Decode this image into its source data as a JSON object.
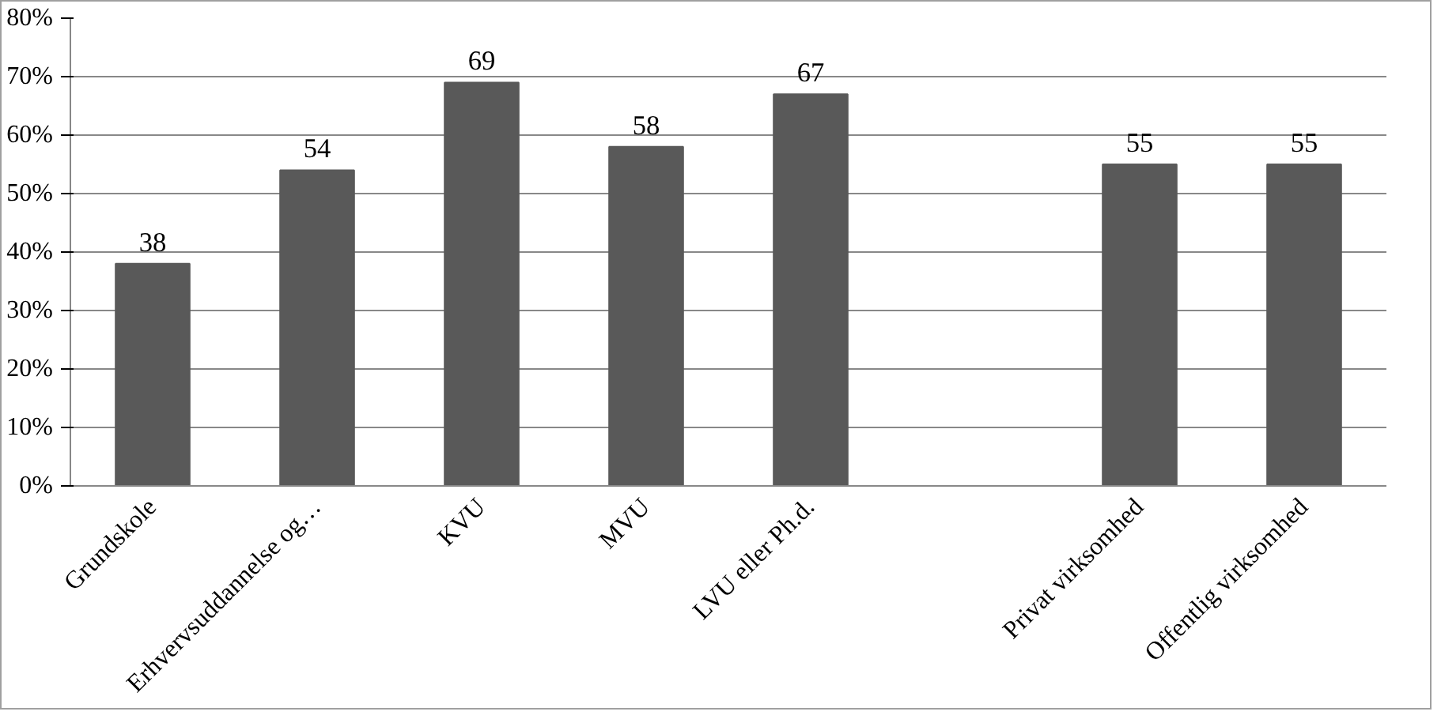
{
  "chart_data": {
    "type": "bar",
    "categories": [
      "Grundskole",
      "Erhvervsuddannelse og…",
      "KVU",
      "MVU",
      "LVU eller Ph.d.",
      null,
      "Privat virksomhed",
      "Offentlig virksomhed"
    ],
    "values": [
      38,
      54,
      69,
      58,
      67,
      null,
      55,
      55
    ],
    "color": "#595959",
    "ylim": [
      0,
      80
    ],
    "yticks": [
      {
        "value": 0,
        "label": "0%"
      },
      {
        "value": 10,
        "label": "10%"
      },
      {
        "value": 20,
        "label": "20%"
      },
      {
        "value": 30,
        "label": "30%"
      },
      {
        "value": 40,
        "label": "40%"
      },
      {
        "value": 50,
        "label": "50%"
      },
      {
        "value": 60,
        "label": "60%"
      },
      {
        "value": 70,
        "label": "70%"
      },
      {
        "value": 80,
        "label": "80%"
      }
    ],
    "grid": "y",
    "data_labels": true
  }
}
